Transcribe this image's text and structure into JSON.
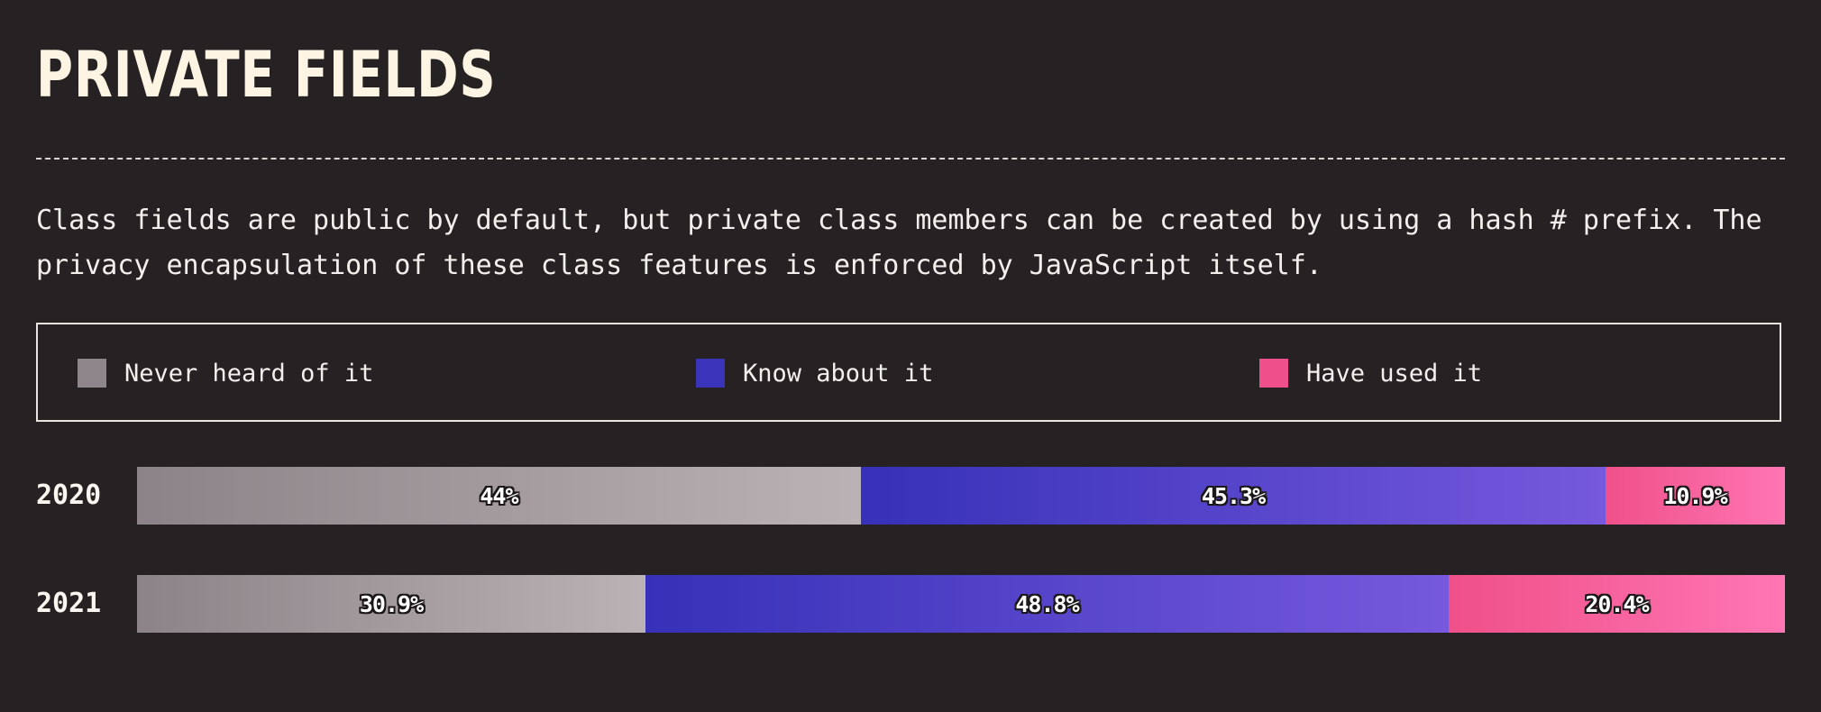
{
  "title": "PRIVATE FIELDS",
  "description": {
    "line1": "Class fields are public by default, but private class members can be created by using a hash # prefix. The",
    "line2": "privacy encapsulation of these class features is enforced by JavaScript itself."
  },
  "chart_data": {
    "type": "bar",
    "orientation": "horizontal-stacked-100",
    "categories": [
      "2020",
      "2021"
    ],
    "series": [
      {
        "name": "Never heard of it",
        "values": [
          44,
          30.9
        ],
        "labels": [
          "44%",
          "30.9%"
        ],
        "color_start": "#8b8387",
        "color_end": "#bab2b4",
        "swatch": "#8e868a"
      },
      {
        "name": "Know about it",
        "values": [
          45.3,
          48.8
        ],
        "labels": [
          "45.3%",
          "48.8%"
        ],
        "color_start": "#3631b8",
        "color_end": "#7659dc",
        "swatch": "#3a34bb"
      },
      {
        "name": "Have used it",
        "values": [
          10.9,
          20.4
        ],
        "labels": [
          "10.9%",
          "20.4%"
        ],
        "color_start": "#ef5089",
        "color_end": "#ff76b3",
        "swatch": "#ef4f8a"
      }
    ],
    "xlim": [
      0,
      100
    ],
    "grid": false,
    "legend": "top"
  }
}
